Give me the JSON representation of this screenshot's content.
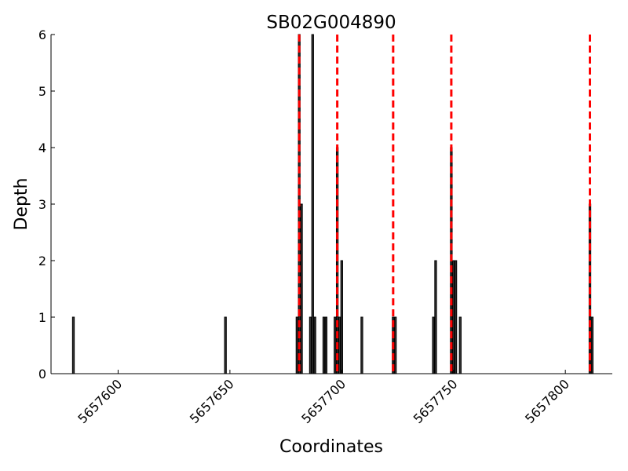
{
  "chart_data": {
    "type": "bar",
    "title": "SB02G004890",
    "x_label": "Coordinates",
    "y_label": "Depth",
    "x": [
      5657580,
      5657648,
      5657680,
      5657681,
      5657682,
      5657686,
      5657687,
      5657688,
      5657692,
      5657693,
      5657697,
      5657698,
      5657699,
      5657700,
      5657709,
      5657723,
      5657724,
      5657741,
      5657742,
      5657749,
      5657750,
      5657751,
      5657753,
      5657811,
      5657812
    ],
    "values": [
      1,
      1,
      1,
      6,
      3,
      1,
      6,
      1,
      1,
      1,
      1,
      4,
      1,
      2,
      1,
      1,
      1,
      1,
      2,
      4,
      2,
      2,
      1,
      3,
      1
    ],
    "color": "#333333",
    "vlines": [
      5657681,
      5657698,
      5657723,
      5657749,
      5657811
    ],
    "vline_color": "#ff0000",
    "xlim": [
      5657570,
      5657821
    ],
    "xticks": [
      5657600,
      5657650,
      5657700,
      5657750,
      5657800
    ],
    "ylim": [
      0,
      6
    ],
    "yticks": [
      0,
      1,
      2,
      3,
      4,
      5,
      6
    ]
  }
}
